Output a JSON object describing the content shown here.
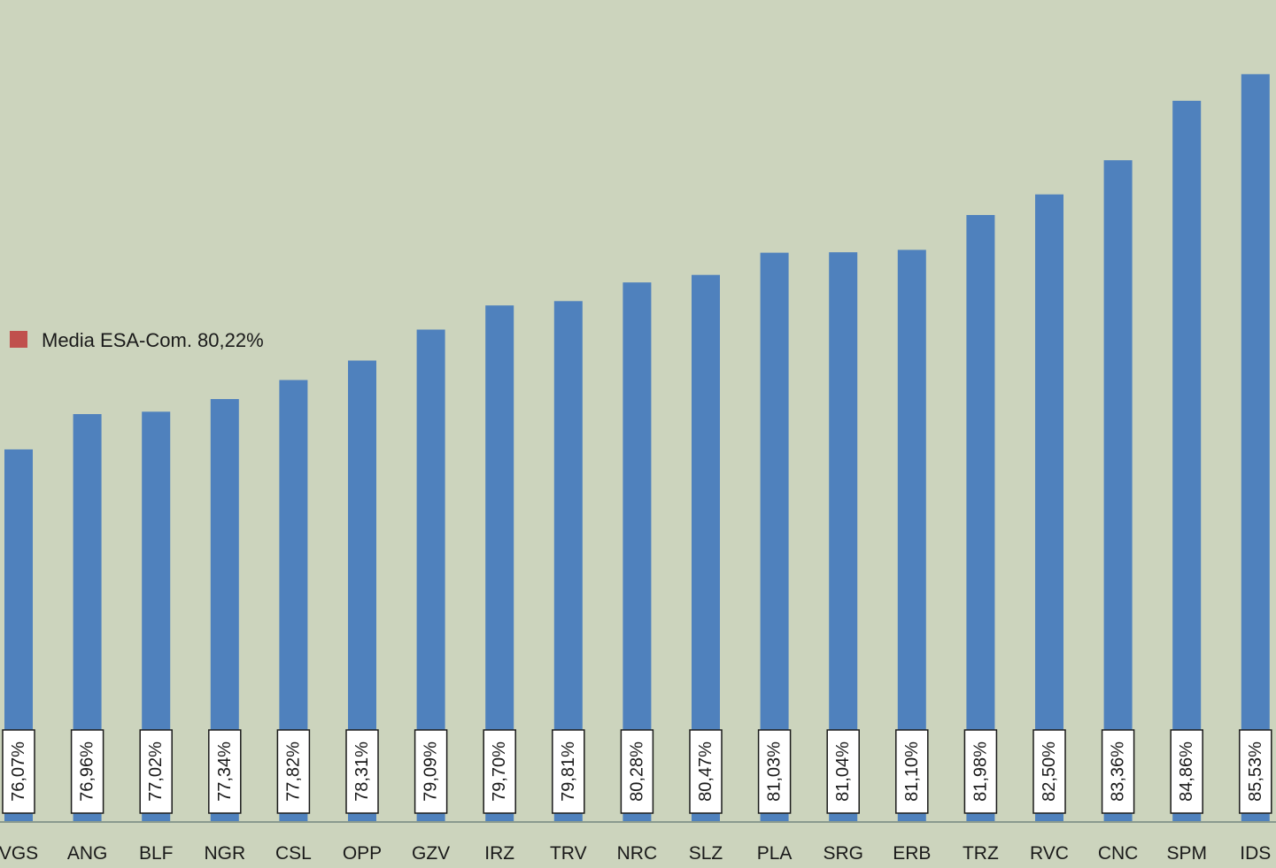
{
  "chart_data": {
    "type": "bar",
    "categories": [
      "VGS",
      "ANG",
      "BLF",
      "NGR",
      "CSL",
      "OPP",
      "GZV",
      "IRZ",
      "TRV",
      "NRC",
      "SLZ",
      "PLA",
      "SRG",
      "ERB",
      "TRZ",
      "RVC",
      "CNC",
      "SPM",
      "IDS"
    ],
    "values": [
      76.07,
      76.96,
      77.02,
      77.34,
      77.82,
      78.31,
      79.09,
      79.7,
      79.81,
      80.28,
      80.47,
      81.03,
      81.04,
      81.1,
      81.98,
      82.5,
      83.36,
      84.86,
      85.53
    ],
    "data_labels": [
      "76,07%",
      "76,96%",
      "77,02%",
      "77,34%",
      "77,82%",
      "78,31%",
      "79,09%",
      "79,70%",
      "79,81%",
      "80,28%",
      "80,47%",
      "81,03%",
      "81,04%",
      "81,10%",
      "81,98%",
      "82,50%",
      "83,36%",
      "84,86%",
      "85,53%"
    ],
    "series": [
      {
        "values": [
          76.07,
          76.96,
          77.02,
          77.34,
          77.82,
          78.31,
          79.09,
          79.7,
          79.81,
          80.28,
          80.47,
          81.03,
          81.04,
          81.1,
          81.98,
          82.5,
          83.36,
          84.86,
          85.53
        ],
        "color": "#4f81bd"
      }
    ],
    "legend": {
      "label": "Media ESA-Com. 80,22%",
      "color": "#c0504d",
      "position": "left"
    },
    "title": "",
    "xlabel": "",
    "ylabel": "",
    "ylim": [
      66.7,
      87.4
    ],
    "grid": false,
    "background": "#ccd4bd",
    "axis_color": "#8a9a8f"
  }
}
